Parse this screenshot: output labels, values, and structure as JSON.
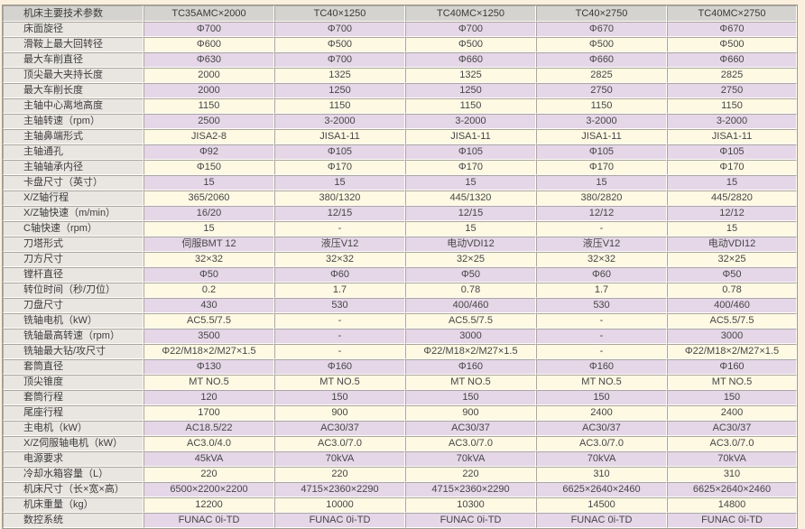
{
  "colors": {
    "page_bg": "#fbf0dd",
    "header_bg": "#d5d3cf",
    "label_col_bg": "#e9e6e2",
    "lavender_row": "#e5d6e8",
    "cream_row": "#fdf9e3",
    "header_text": "#3a3a3a",
    "label_text": "#3c3c3c",
    "value_text": "#464646"
  },
  "table": {
    "header": {
      "param_label": "机床主要技术参数",
      "models": [
        "TC35AMC×2000",
        "TC40×1250",
        "TC40MC×1250",
        "TC40×2750",
        "TC40MC×2750"
      ]
    },
    "rows": [
      {
        "label": "床面旋径",
        "values": [
          "Φ700",
          "Φ700",
          "Φ700",
          "Φ670",
          "Φ670"
        ]
      },
      {
        "label": "滑鞍上最大回转径",
        "values": [
          "Φ600",
          "Φ500",
          "Φ500",
          "Φ500",
          "Φ500"
        ]
      },
      {
        "label": "最大车削直径",
        "values": [
          "Φ630",
          "Φ700",
          "Φ660",
          "Φ660",
          "Φ660"
        ]
      },
      {
        "label": "顶尖最大夹持长度",
        "values": [
          "2000",
          "1325",
          "1325",
          "2825",
          "2825"
        ]
      },
      {
        "label": "最大车削长度",
        "values": [
          "2000",
          "1250",
          "1250",
          "2750",
          "2750"
        ]
      },
      {
        "label": "主轴中心离地高度",
        "values": [
          "1150",
          "1150",
          "1150",
          "1150",
          "1150"
        ]
      },
      {
        "label": "主轴转速（rpm）",
        "values": [
          "2500",
          "3-2000",
          "3-2000",
          "3-2000",
          "3-2000"
        ]
      },
      {
        "label": "主轴鼻端形式",
        "values": [
          "JISA2-8",
          "JISA1-11",
          "JISA1-11",
          "JISA1-11",
          "JISA1-11"
        ]
      },
      {
        "label": "主轴通孔",
        "values": [
          "Φ92",
          "Φ105",
          "Φ105",
          "Φ105",
          "Φ105"
        ]
      },
      {
        "label": "主轴轴承内径",
        "values": [
          "Φ150",
          "Φ170",
          "Φ170",
          "Φ170",
          "Φ170"
        ]
      },
      {
        "label": "卡盘尺寸（英寸）",
        "values": [
          "15",
          "15",
          "15",
          "15",
          "15"
        ]
      },
      {
        "label": "X/Z轴行程",
        "values": [
          "365/2060",
          "380/1320",
          "445/1320",
          "380/2820",
          "445/2820"
        ]
      },
      {
        "label": "X/Z轴快速（m/min）",
        "values": [
          "16/20",
          "12/15",
          "12/15",
          "12/12",
          "12/12"
        ]
      },
      {
        "label": "C轴快速（rpm）",
        "values": [
          "15",
          "-",
          "15",
          "-",
          "15"
        ]
      },
      {
        "label": "刀塔形式",
        "values": [
          "伺服BMT 12",
          "液压V12",
          "电动VDI12",
          "液压V12",
          "电动VDI12"
        ]
      },
      {
        "label": "刀方尺寸",
        "values": [
          "32×32",
          "32×32",
          "32×25",
          "32×32",
          "32×25"
        ]
      },
      {
        "label": "镗杆直径",
        "values": [
          "Φ50",
          "Φ60",
          "Φ50",
          "Φ60",
          "Φ50"
        ]
      },
      {
        "label": "转位时间（秒/刀位）",
        "values": [
          "0.2",
          "1.7",
          "0.78",
          "1.7",
          "0.78"
        ]
      },
      {
        "label": "刀盘尺寸",
        "values": [
          "430",
          "530",
          "400/460",
          "530",
          "400/460"
        ]
      },
      {
        "label": "铣轴电机（kW）",
        "values": [
          "AC5.5/7.5",
          "-",
          "AC5.5/7.5",
          "-",
          "AC5.5/7.5"
        ]
      },
      {
        "label": "铣轴最高转速（rpm）",
        "values": [
          "3500",
          "-",
          "3000",
          "-",
          "3000"
        ]
      },
      {
        "label": "铣轴最大钻/攻尺寸",
        "values": [
          "Φ22/M18×2/M27×1.5",
          "-",
          "Φ22/M18×2/M27×1.5",
          "-",
          "Φ22/M18×2/M27×1.5"
        ]
      },
      {
        "label": "套筒直径",
        "values": [
          "Φ130",
          "Φ160",
          "Φ160",
          "Φ160",
          "Φ160"
        ]
      },
      {
        "label": "顶尖锥度",
        "values": [
          "MT NO.5",
          "MT NO.5",
          "MT NO.5",
          "MT NO.5",
          "MT NO.5"
        ]
      },
      {
        "label": "套筒行程",
        "values": [
          "120",
          "150",
          "150",
          "150",
          "150"
        ]
      },
      {
        "label": "尾座行程",
        "values": [
          "1700",
          "900",
          "900",
          "2400",
          "2400"
        ]
      },
      {
        "label": "主电机（kW）",
        "values": [
          "AC18.5/22",
          "AC30/37",
          "AC30/37",
          "AC30/37",
          "AC30/37"
        ]
      },
      {
        "label": "X/Z伺服轴电机（kW）",
        "values": [
          "AC3.0/4.0",
          "AC3.0/7.0",
          "AC3.0/7.0",
          "AC3.0/7.0",
          "AC3.0/7.0"
        ]
      },
      {
        "label": "电源要求",
        "values": [
          "45kVA",
          "70kVA",
          "70kVA",
          "70kVA",
          "70kVA"
        ]
      },
      {
        "label": "冷却水箱容量（L）",
        "values": [
          "220",
          "220",
          "220",
          "310",
          "310"
        ]
      },
      {
        "label": "机床尺寸（长×宽×高）",
        "values": [
          "6500×2200×2200",
          "4715×2360×2290",
          "4715×2360×2290",
          "6625×2640×2460",
          "6625×2640×2460"
        ]
      },
      {
        "label": "机床重量（kg）",
        "values": [
          "12200",
          "10000",
          "10300",
          "14500",
          "14800"
        ]
      },
      {
        "label": "数控系统",
        "values": [
          "FUNAC 0i-TD",
          "FUNAC 0i-TD",
          "FUNAC 0i-TD",
          "FUNAC 0i-TD",
          "FUNAC 0i-TD"
        ]
      }
    ]
  }
}
